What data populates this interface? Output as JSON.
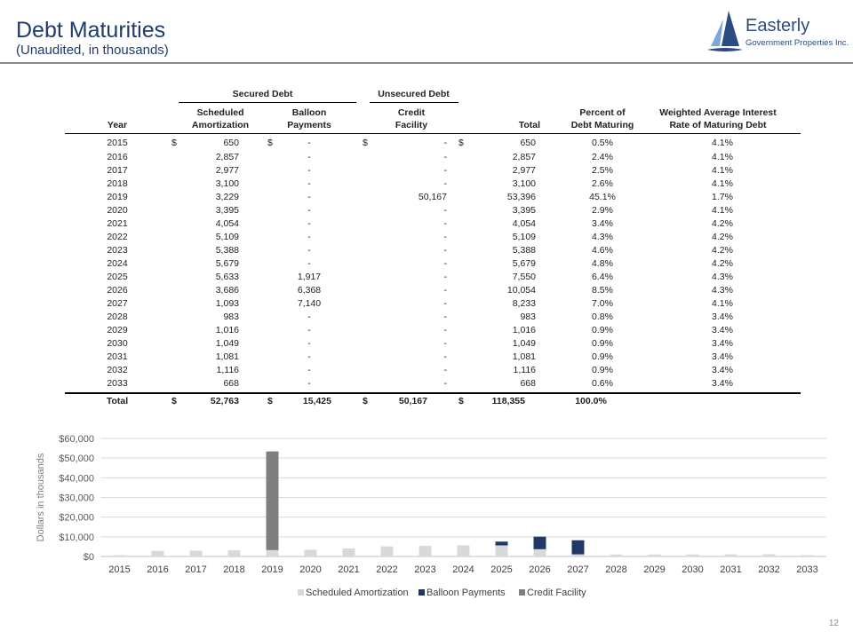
{
  "header": {
    "title": "Debt Maturities",
    "subtitle": "(Unaudited, in thousands)"
  },
  "logo": {
    "name": "Easterly",
    "tagline": "Government Properties Inc.",
    "icon": "sailboat-icon",
    "color": "#2a4c82"
  },
  "table": {
    "group_headers": {
      "secured": "Secured Debt",
      "unsecured": "Unsecured Debt"
    },
    "columns": {
      "year": "Year",
      "sa": [
        "Scheduled",
        "Amortization"
      ],
      "bp": [
        "Balloon",
        "Payments"
      ],
      "cf": [
        "Credit",
        "Facility"
      ],
      "total": "Total",
      "pct": [
        "Percent of",
        "Debt Maturing"
      ],
      "rate": [
        "Weighted Average Interest",
        "Rate of Maturing Debt"
      ]
    },
    "currency_symbol": "$",
    "rows": [
      {
        "year": "2015",
        "sa": "650",
        "bp": "-",
        "cf": "-",
        "total": "650",
        "pct": "0.5%",
        "rate": "4.1%"
      },
      {
        "year": "2016",
        "sa": "2,857",
        "bp": "-",
        "cf": "-",
        "total": "2,857",
        "pct": "2.4%",
        "rate": "4.1%"
      },
      {
        "year": "2017",
        "sa": "2,977",
        "bp": "-",
        "cf": "-",
        "total": "2,977",
        "pct": "2.5%",
        "rate": "4.1%"
      },
      {
        "year": "2018",
        "sa": "3,100",
        "bp": "-",
        "cf": "-",
        "total": "3,100",
        "pct": "2.6%",
        "rate": "4.1%"
      },
      {
        "year": "2019",
        "sa": "3,229",
        "bp": "-",
        "cf": "50,167",
        "total": "53,396",
        "pct": "45.1%",
        "rate": "1.7%"
      },
      {
        "year": "2020",
        "sa": "3,395",
        "bp": "-",
        "cf": "-",
        "total": "3,395",
        "pct": "2.9%",
        "rate": "4.1%"
      },
      {
        "year": "2021",
        "sa": "4,054",
        "bp": "-",
        "cf": "-",
        "total": "4,054",
        "pct": "3.4%",
        "rate": "4.2%"
      },
      {
        "year": "2022",
        "sa": "5,109",
        "bp": "-",
        "cf": "-",
        "total": "5,109",
        "pct": "4.3%",
        "rate": "4.2%"
      },
      {
        "year": "2023",
        "sa": "5,388",
        "bp": "-",
        "cf": "-",
        "total": "5,388",
        "pct": "4.6%",
        "rate": "4.2%"
      },
      {
        "year": "2024",
        "sa": "5,679",
        "bp": "-",
        "cf": "-",
        "total": "5,679",
        "pct": "4.8%",
        "rate": "4.2%"
      },
      {
        "year": "2025",
        "sa": "5,633",
        "bp": "1,917",
        "cf": "-",
        "total": "7,550",
        "pct": "6.4%",
        "rate": "4.3%"
      },
      {
        "year": "2026",
        "sa": "3,686",
        "bp": "6,368",
        "cf": "-",
        "total": "10,054",
        "pct": "8.5%",
        "rate": "4.3%"
      },
      {
        "year": "2027",
        "sa": "1,093",
        "bp": "7,140",
        "cf": "-",
        "total": "8,233",
        "pct": "7.0%",
        "rate": "4.1%"
      },
      {
        "year": "2028",
        "sa": "983",
        "bp": "-",
        "cf": "-",
        "total": "983",
        "pct": "0.8%",
        "rate": "3.4%"
      },
      {
        "year": "2029",
        "sa": "1,016",
        "bp": "-",
        "cf": "-",
        "total": "1,016",
        "pct": "0.9%",
        "rate": "3.4%"
      },
      {
        "year": "2030",
        "sa": "1,049",
        "bp": "-",
        "cf": "-",
        "total": "1,049",
        "pct": "0.9%",
        "rate": "3.4%"
      },
      {
        "year": "2031",
        "sa": "1,081",
        "bp": "-",
        "cf": "-",
        "total": "1,081",
        "pct": "0.9%",
        "rate": "3.4%"
      },
      {
        "year": "2032",
        "sa": "1,116",
        "bp": "-",
        "cf": "-",
        "total": "1,116",
        "pct": "0.9%",
        "rate": "3.4%"
      },
      {
        "year": "2033",
        "sa": "668",
        "bp": "-",
        "cf": "-",
        "total": "668",
        "pct": "0.6%",
        "rate": "3.4%"
      }
    ],
    "total_row": {
      "label": "Total",
      "sa": "52,763",
      "bp": "15,425",
      "cf": "50,167",
      "total": "118,355",
      "pct": "100.0%"
    }
  },
  "chart_data": {
    "type": "bar",
    "stacked": true,
    "categories": [
      "2015",
      "2016",
      "2017",
      "2018",
      "2019",
      "2020",
      "2021",
      "2022",
      "2023",
      "2024",
      "2025",
      "2026",
      "2027",
      "2028",
      "2029",
      "2030",
      "2031",
      "2032",
      "2033"
    ],
    "series": [
      {
        "name": "Scheduled Amortization",
        "color": "#d9d9d9",
        "values": [
          650,
          2857,
          2977,
          3100,
          3229,
          3395,
          4054,
          5109,
          5388,
          5679,
          5633,
          3686,
          1093,
          983,
          1016,
          1049,
          1081,
          1116,
          668
        ]
      },
      {
        "name": "Balloon Payments",
        "color": "#1f3864",
        "values": [
          0,
          0,
          0,
          0,
          0,
          0,
          0,
          0,
          0,
          0,
          1917,
          6368,
          7140,
          0,
          0,
          0,
          0,
          0,
          0
        ]
      },
      {
        "name": "Credit Facility",
        "color": "#7f7f7f",
        "values": [
          0,
          0,
          0,
          0,
          50167,
          0,
          0,
          0,
          0,
          0,
          0,
          0,
          0,
          0,
          0,
          0,
          0,
          0,
          0
        ]
      }
    ],
    "ylabel": "Dollars in thousands",
    "ylim": [
      0,
      60000
    ],
    "yticks": [
      0,
      10000,
      20000,
      30000,
      40000,
      50000,
      60000
    ],
    "ytick_labels": [
      "$0",
      "$10,000",
      "$20,000",
      "$30,000",
      "$40,000",
      "$50,000",
      "$60,000"
    ],
    "grid": true,
    "legend": "bottom"
  },
  "page_number": "12"
}
